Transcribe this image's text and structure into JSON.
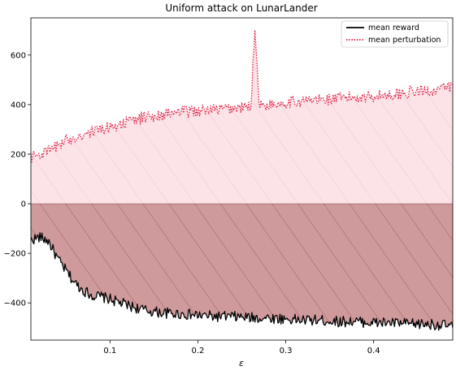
{
  "chart_data": {
    "type": "line",
    "title": "Uniform attack on LunarLander",
    "xlabel": "ε",
    "ylabel": "",
    "xlim": [
      0.01,
      0.49
    ],
    "ylim": [
      -550,
      750
    ],
    "x_ticks": [
      0.1,
      0.2,
      0.3,
      0.4
    ],
    "x_tick_labels": [
      "0.1",
      "0.2",
      "0.3",
      "0.4"
    ],
    "y_ticks": [
      -400,
      -200,
      0,
      200,
      400,
      600
    ],
    "y_tick_labels": [
      "−400",
      "−200",
      "0",
      "200",
      "400",
      "600"
    ],
    "grid": false,
    "legend_position": "top-right",
    "series": [
      {
        "name": "mean reward",
        "style": "solid",
        "color": "#000000",
        "fill_color": "#a0353a",
        "x": [
          0.01,
          0.02,
          0.03,
          0.04,
          0.05,
          0.06,
          0.07,
          0.08,
          0.09,
          0.1,
          0.12,
          0.14,
          0.16,
          0.18,
          0.2,
          0.22,
          0.24,
          0.26,
          0.28,
          0.3,
          0.32,
          0.34,
          0.36,
          0.38,
          0.4,
          0.42,
          0.44,
          0.46,
          0.48,
          0.49
        ],
        "y": [
          -145,
          -135,
          -150,
          -220,
          -270,
          -320,
          -350,
          -370,
          -375,
          -385,
          -410,
          -430,
          -440,
          -445,
          -450,
          -455,
          -455,
          -460,
          -460,
          -465,
          -470,
          -470,
          -475,
          -475,
          -480,
          -480,
          -485,
          -485,
          -490,
          -495
        ]
      },
      {
        "name": "mean perturbation",
        "style": "dotted",
        "color": "#e0284a",
        "fill_color": "#f6c2cc",
        "x": [
          0.01,
          0.02,
          0.03,
          0.04,
          0.05,
          0.06,
          0.07,
          0.08,
          0.09,
          0.1,
          0.12,
          0.14,
          0.16,
          0.18,
          0.2,
          0.22,
          0.24,
          0.26,
          0.265,
          0.27,
          0.28,
          0.3,
          0.32,
          0.34,
          0.36,
          0.38,
          0.4,
          0.42,
          0.44,
          0.46,
          0.48,
          0.49
        ],
        "y": [
          190,
          200,
          210,
          235,
          255,
          270,
          280,
          290,
          300,
          310,
          330,
          350,
          360,
          370,
          375,
          380,
          385,
          390,
          700,
          395,
          400,
          410,
          415,
          420,
          425,
          430,
          435,
          440,
          450,
          455,
          465,
          475
        ]
      }
    ]
  }
}
